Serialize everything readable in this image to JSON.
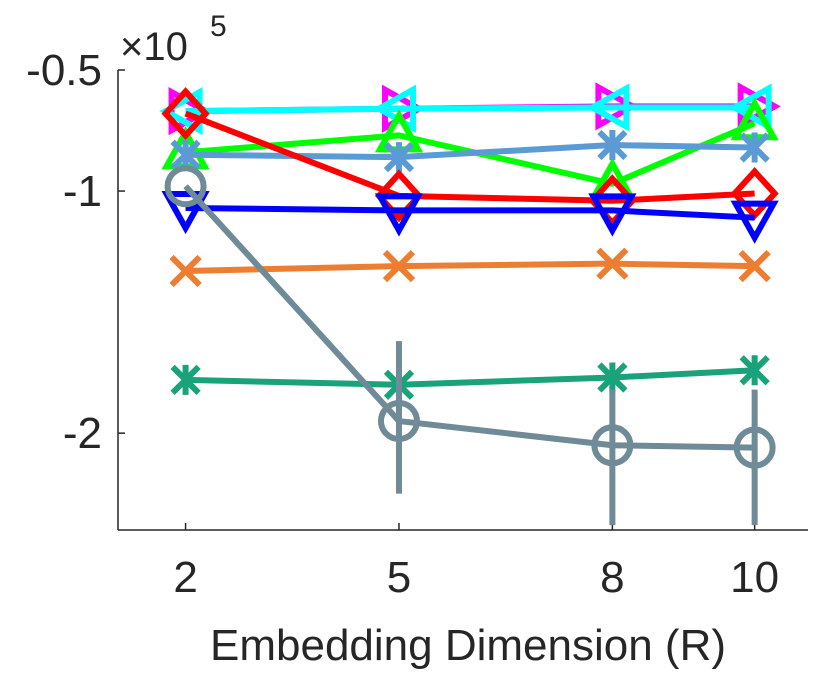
{
  "chart_data": {
    "type": "line",
    "title": "",
    "xlabel": "Embedding Dimension (R)",
    "ylabel": "",
    "y_exponent_label": "×10",
    "y_exponent_power": "5",
    "x": [
      2,
      5,
      8,
      10
    ],
    "x_tick_labels": [
      "2",
      "5",
      "8",
      "10"
    ],
    "xlim": [
      1.05,
      10.75
    ],
    "y_ticks": [
      -0.5,
      -1,
      -2
    ],
    "y_tick_labels": [
      "-0.5",
      "-1",
      "-2"
    ],
    "ylim": [
      -2.4,
      -0.5
    ],
    "grid": false,
    "series": [
      {
        "name": "magenta-triangle-right",
        "marker": "triangle-right",
        "color": "#ff00ff",
        "values": [
          -0.67,
          -0.66,
          -0.65,
          -0.65
        ]
      },
      {
        "name": "cyan-triangle-left",
        "marker": "triangle-left",
        "color": "#00ffff",
        "values": [
          -0.67,
          -0.66,
          -0.655,
          -0.655
        ]
      },
      {
        "name": "green-triangle-up",
        "marker": "triangle-up",
        "color": "#00ff00",
        "values": [
          -0.84,
          -0.77,
          -0.97,
          -0.72
        ]
      },
      {
        "name": "light-blue-star",
        "marker": "star",
        "color": "#5b9bd5",
        "values": [
          -0.85,
          -0.86,
          -0.81,
          -0.82
        ]
      },
      {
        "name": "red-diamond",
        "marker": "diamond",
        "color": "#ff0000",
        "values": [
          -0.68,
          -1.02,
          -1.04,
          -1.01
        ]
      },
      {
        "name": "blue-triangle-down",
        "marker": "triangle-down",
        "color": "#0000ff",
        "values": [
          -1.07,
          -1.08,
          -1.08,
          -1.11
        ]
      },
      {
        "name": "orange-x",
        "marker": "x",
        "color": "#ed7d31",
        "values": [
          -1.33,
          -1.31,
          -1.3,
          -1.31
        ]
      },
      {
        "name": "teal-star",
        "marker": "star",
        "color": "#1aa37a",
        "values": [
          -1.78,
          -1.8,
          -1.77,
          -1.74
        ]
      },
      {
        "name": "gray-circle",
        "marker": "circle",
        "color": "#6e8b97",
        "values": [
          -0.98,
          -1.95,
          -2.05,
          -2.06
        ],
        "error_low": [
          -0.98,
          -2.25,
          -2.38,
          -2.38
        ],
        "error_high": [
          -0.98,
          -1.62,
          -1.82,
          -1.82
        ]
      }
    ]
  }
}
